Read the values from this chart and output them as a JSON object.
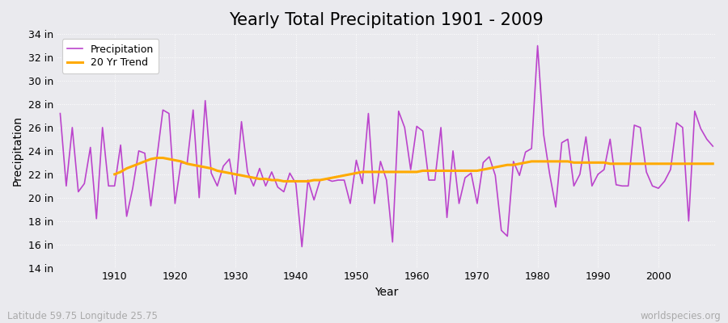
{
  "title": "Yearly Total Precipitation 1901 - 2009",
  "xlabel": "Year",
  "ylabel": "Precipitation",
  "subtitle": "Latitude 59.75 Longitude 25.75",
  "watermark": "worldspecies.org",
  "years": [
    1901,
    1902,
    1903,
    1904,
    1905,
    1906,
    1907,
    1908,
    1909,
    1910,
    1911,
    1912,
    1913,
    1914,
    1915,
    1916,
    1917,
    1918,
    1919,
    1920,
    1921,
    1922,
    1923,
    1924,
    1925,
    1926,
    1927,
    1928,
    1929,
    1930,
    1931,
    1932,
    1933,
    1934,
    1935,
    1936,
    1937,
    1938,
    1939,
    1940,
    1941,
    1942,
    1943,
    1944,
    1945,
    1946,
    1947,
    1948,
    1949,
    1950,
    1951,
    1952,
    1953,
    1954,
    1955,
    1956,
    1957,
    1958,
    1959,
    1960,
    1961,
    1962,
    1963,
    1964,
    1965,
    1966,
    1967,
    1968,
    1969,
    1970,
    1971,
    1972,
    1973,
    1974,
    1975,
    1976,
    1977,
    1978,
    1979,
    1980,
    1981,
    1982,
    1983,
    1984,
    1985,
    1986,
    1987,
    1988,
    1989,
    1990,
    1991,
    1992,
    1993,
    1994,
    1995,
    1996,
    1997,
    1998,
    1999,
    2000,
    2001,
    2002,
    2003,
    2004,
    2005,
    2006,
    2007,
    2008,
    2009
  ],
  "precip": [
    27.2,
    21.0,
    26.0,
    20.5,
    21.2,
    24.3,
    18.2,
    26.0,
    21.0,
    21.0,
    24.5,
    18.4,
    20.8,
    24.0,
    23.8,
    19.3,
    23.4,
    27.5,
    27.2,
    19.5,
    23.0,
    22.9,
    27.5,
    20.0,
    28.3,
    22.1,
    21.0,
    22.7,
    23.3,
    20.3,
    26.5,
    22.2,
    21.0,
    22.5,
    21.0,
    22.2,
    20.9,
    20.5,
    22.1,
    21.2,
    15.8,
    21.5,
    19.8,
    21.5,
    21.6,
    21.4,
    21.5,
    21.5,
    19.5,
    23.2,
    21.2,
    27.2,
    19.5,
    23.1,
    21.5,
    16.2,
    27.4,
    26.0,
    22.4,
    26.1,
    25.7,
    21.5,
    21.5,
    26.0,
    18.3,
    24.0,
    19.5,
    21.7,
    22.1,
    19.5,
    23.0,
    23.5,
    21.9,
    17.2,
    16.7,
    23.1,
    21.9,
    23.9,
    24.2,
    33.0,
    25.4,
    22.0,
    19.2,
    24.7,
    25.0,
    21.0,
    22.0,
    25.2,
    21.0,
    22.0,
    22.4,
    25.0,
    21.1,
    21.0,
    21.0,
    26.2,
    26.0,
    22.2,
    21.0,
    20.8,
    21.4,
    22.4,
    26.4,
    26.0,
    18.0,
    27.4,
    25.9,
    25.0,
    24.4
  ],
  "trend_years": [
    1910,
    1911,
    1912,
    1913,
    1914,
    1915,
    1916,
    1917,
    1918,
    1919,
    1920,
    1921,
    1922,
    1923,
    1924,
    1925,
    1926,
    1927,
    1928,
    1929,
    1930,
    1931,
    1932,
    1933,
    1934,
    1935,
    1936,
    1937,
    1938,
    1939,
    1940,
    1941,
    1942,
    1943,
    1944,
    1945,
    1946,
    1947,
    1948,
    1949,
    1950,
    1951,
    1952,
    1953,
    1954,
    1955,
    1956,
    1957,
    1958,
    1959,
    1960,
    1961,
    1962,
    1963,
    1964,
    1965,
    1966,
    1967,
    1968,
    1969,
    1970,
    1971,
    1972,
    1973,
    1974,
    1975,
    1976,
    1977,
    1978,
    1979,
    1980,
    1981,
    1982,
    1983,
    1984,
    1985,
    1986,
    1987,
    1988,
    1989,
    1990,
    1991,
    1992,
    1993,
    1994,
    1995,
    1996,
    1997,
    1998,
    1999,
    2000,
    2001,
    2002,
    2003,
    2004,
    2005,
    2006,
    2007,
    2008,
    2009
  ],
  "trend": [
    22.0,
    22.2,
    22.5,
    22.7,
    22.9,
    23.1,
    23.3,
    23.4,
    23.4,
    23.3,
    23.2,
    23.1,
    22.9,
    22.8,
    22.7,
    22.6,
    22.5,
    22.3,
    22.2,
    22.1,
    22.0,
    21.9,
    21.8,
    21.7,
    21.6,
    21.6,
    21.5,
    21.5,
    21.4,
    21.4,
    21.4,
    21.4,
    21.4,
    21.5,
    21.5,
    21.6,
    21.7,
    21.8,
    21.9,
    22.0,
    22.1,
    22.2,
    22.2,
    22.2,
    22.2,
    22.2,
    22.2,
    22.2,
    22.2,
    22.2,
    22.2,
    22.3,
    22.3,
    22.3,
    22.3,
    22.3,
    22.3,
    22.3,
    22.3,
    22.3,
    22.3,
    22.4,
    22.5,
    22.6,
    22.7,
    22.8,
    22.8,
    22.9,
    23.0,
    23.1,
    23.1,
    23.1,
    23.1,
    23.1,
    23.1,
    23.1,
    23.0,
    23.0,
    23.0,
    23.0,
    23.0,
    23.0,
    22.9,
    22.9,
    22.9,
    22.9,
    22.9,
    22.9,
    22.9,
    22.9,
    22.9,
    22.9,
    22.9,
    22.9,
    22.9,
    22.9,
    22.9,
    22.9,
    22.9,
    22.9
  ],
  "precip_color": "#bb44cc",
  "trend_color": "#ffaa00",
  "bg_color": "#eaeaee",
  "plot_bg_color": "#eaeaee",
  "ylim_min": 14,
  "ylim_max": 34,
  "ytick_step": 2,
  "xtick_years": [
    1910,
    1920,
    1930,
    1940,
    1950,
    1960,
    1970,
    1980,
    1990,
    2000
  ],
  "title_fontsize": 15,
  "axis_label_fontsize": 10,
  "tick_fontsize": 9,
  "legend_fontsize": 9
}
